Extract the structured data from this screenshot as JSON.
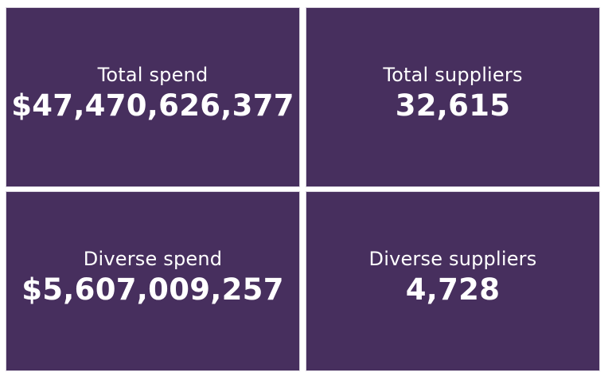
{
  "cards": {
    "total_spend": {
      "label": "Total spend",
      "value": "$47,470,626,377"
    },
    "total_suppliers": {
      "label": "Total suppliers",
      "value": "32,615"
    },
    "diverse_spend": {
      "label": "Diverse spend",
      "value": "$5,607,009,257"
    },
    "diverse_suppliers": {
      "label": "Diverse suppliers",
      "value": "4,728"
    }
  },
  "colors": {
    "card_background": "#472f5e",
    "text": "#ffffff",
    "page_background": "#ffffff"
  }
}
